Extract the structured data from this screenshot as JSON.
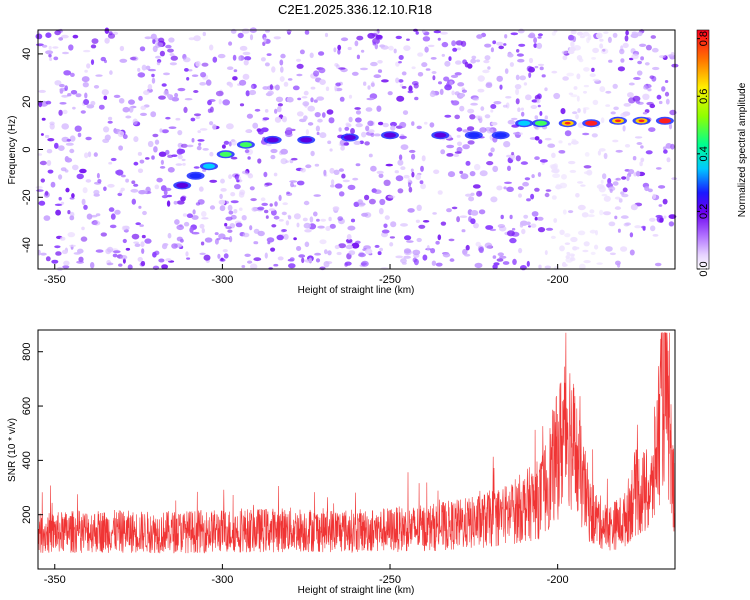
{
  "title": "C2E1.2025.336.12.10.R18",
  "colors": {
    "snr_line": "#f03434",
    "axis": "#000000"
  },
  "chart_data": [
    {
      "type": "heatmap",
      "xlabel": "Height of straight line (km)",
      "ylabel": "Frequency (Hz)",
      "xlim": [
        -355,
        -165
      ],
      "ylim": [
        -50,
        50
      ],
      "xticks": [
        -350,
        -300,
        -250,
        -200
      ],
      "yticks": [
        -40,
        -20,
        0,
        20,
        40
      ],
      "colorbar": {
        "label": "Normalized spectral amplitude",
        "range": [
          0,
          0.83
        ],
        "ticks": [
          "0.0",
          "0.2",
          "0.4",
          "0.6",
          "0.8"
        ],
        "tick_values": [
          0,
          0.2,
          0.4,
          0.6,
          0.8
        ]
      },
      "trace": [
        {
          "x": -312,
          "y": -15,
          "amp": 0.25
        },
        {
          "x": -308,
          "y": -11,
          "amp": 0.3
        },
        {
          "x": -304,
          "y": -7,
          "amp": 0.35
        },
        {
          "x": -299,
          "y": -2,
          "amp": 0.45
        },
        {
          "x": -293,
          "y": 2,
          "amp": 0.5
        },
        {
          "x": -285,
          "y": 4,
          "amp": 0.25
        },
        {
          "x": -275,
          "y": 4,
          "amp": 0.2
        },
        {
          "x": -262,
          "y": 5,
          "amp": 0.2
        },
        {
          "x": -250,
          "y": 6,
          "amp": 0.2
        },
        {
          "x": -235,
          "y": 6,
          "amp": 0.25
        },
        {
          "x": -225,
          "y": 6,
          "amp": 0.28
        },
        {
          "x": -217,
          "y": 6,
          "amp": 0.3
        },
        {
          "x": -210,
          "y": 11,
          "amp": 0.4
        },
        {
          "x": -205,
          "y": 11,
          "amp": 0.5
        },
        {
          "x": -197,
          "y": 11,
          "amp": 0.55
        },
        {
          "x": -190,
          "y": 11,
          "amp": 0.7
        },
        {
          "x": -182,
          "y": 12,
          "amp": 0.6
        },
        {
          "x": -175,
          "y": 12,
          "amp": 0.65
        },
        {
          "x": -168,
          "y": 12,
          "amp": 0.75
        }
      ]
    },
    {
      "type": "line",
      "xlabel": "Height of straight line (km)",
      "ylabel": "SNR (10 * v/v)",
      "xlim": [
        -355,
        -165
      ],
      "ylim": [
        0,
        880
      ],
      "xticks": [
        -350,
        -300,
        -250,
        -200
      ],
      "yticks": [
        200,
        400,
        600,
        800
      ],
      "series": [
        {
          "name": "SNR",
          "x": [
            -355,
            -340,
            -320,
            -300,
            -280,
            -260,
            -240,
            -225,
            -215,
            -205,
            -200,
            -197,
            -194,
            -190,
            -185,
            -180,
            -177,
            -172,
            -170,
            -168,
            -166
          ],
          "values": [
            130,
            140,
            135,
            140,
            145,
            140,
            150,
            170,
            200,
            260,
            420,
            550,
            380,
            200,
            150,
            180,
            280,
            280,
            500,
            740,
            320
          ]
        }
      ]
    }
  ]
}
